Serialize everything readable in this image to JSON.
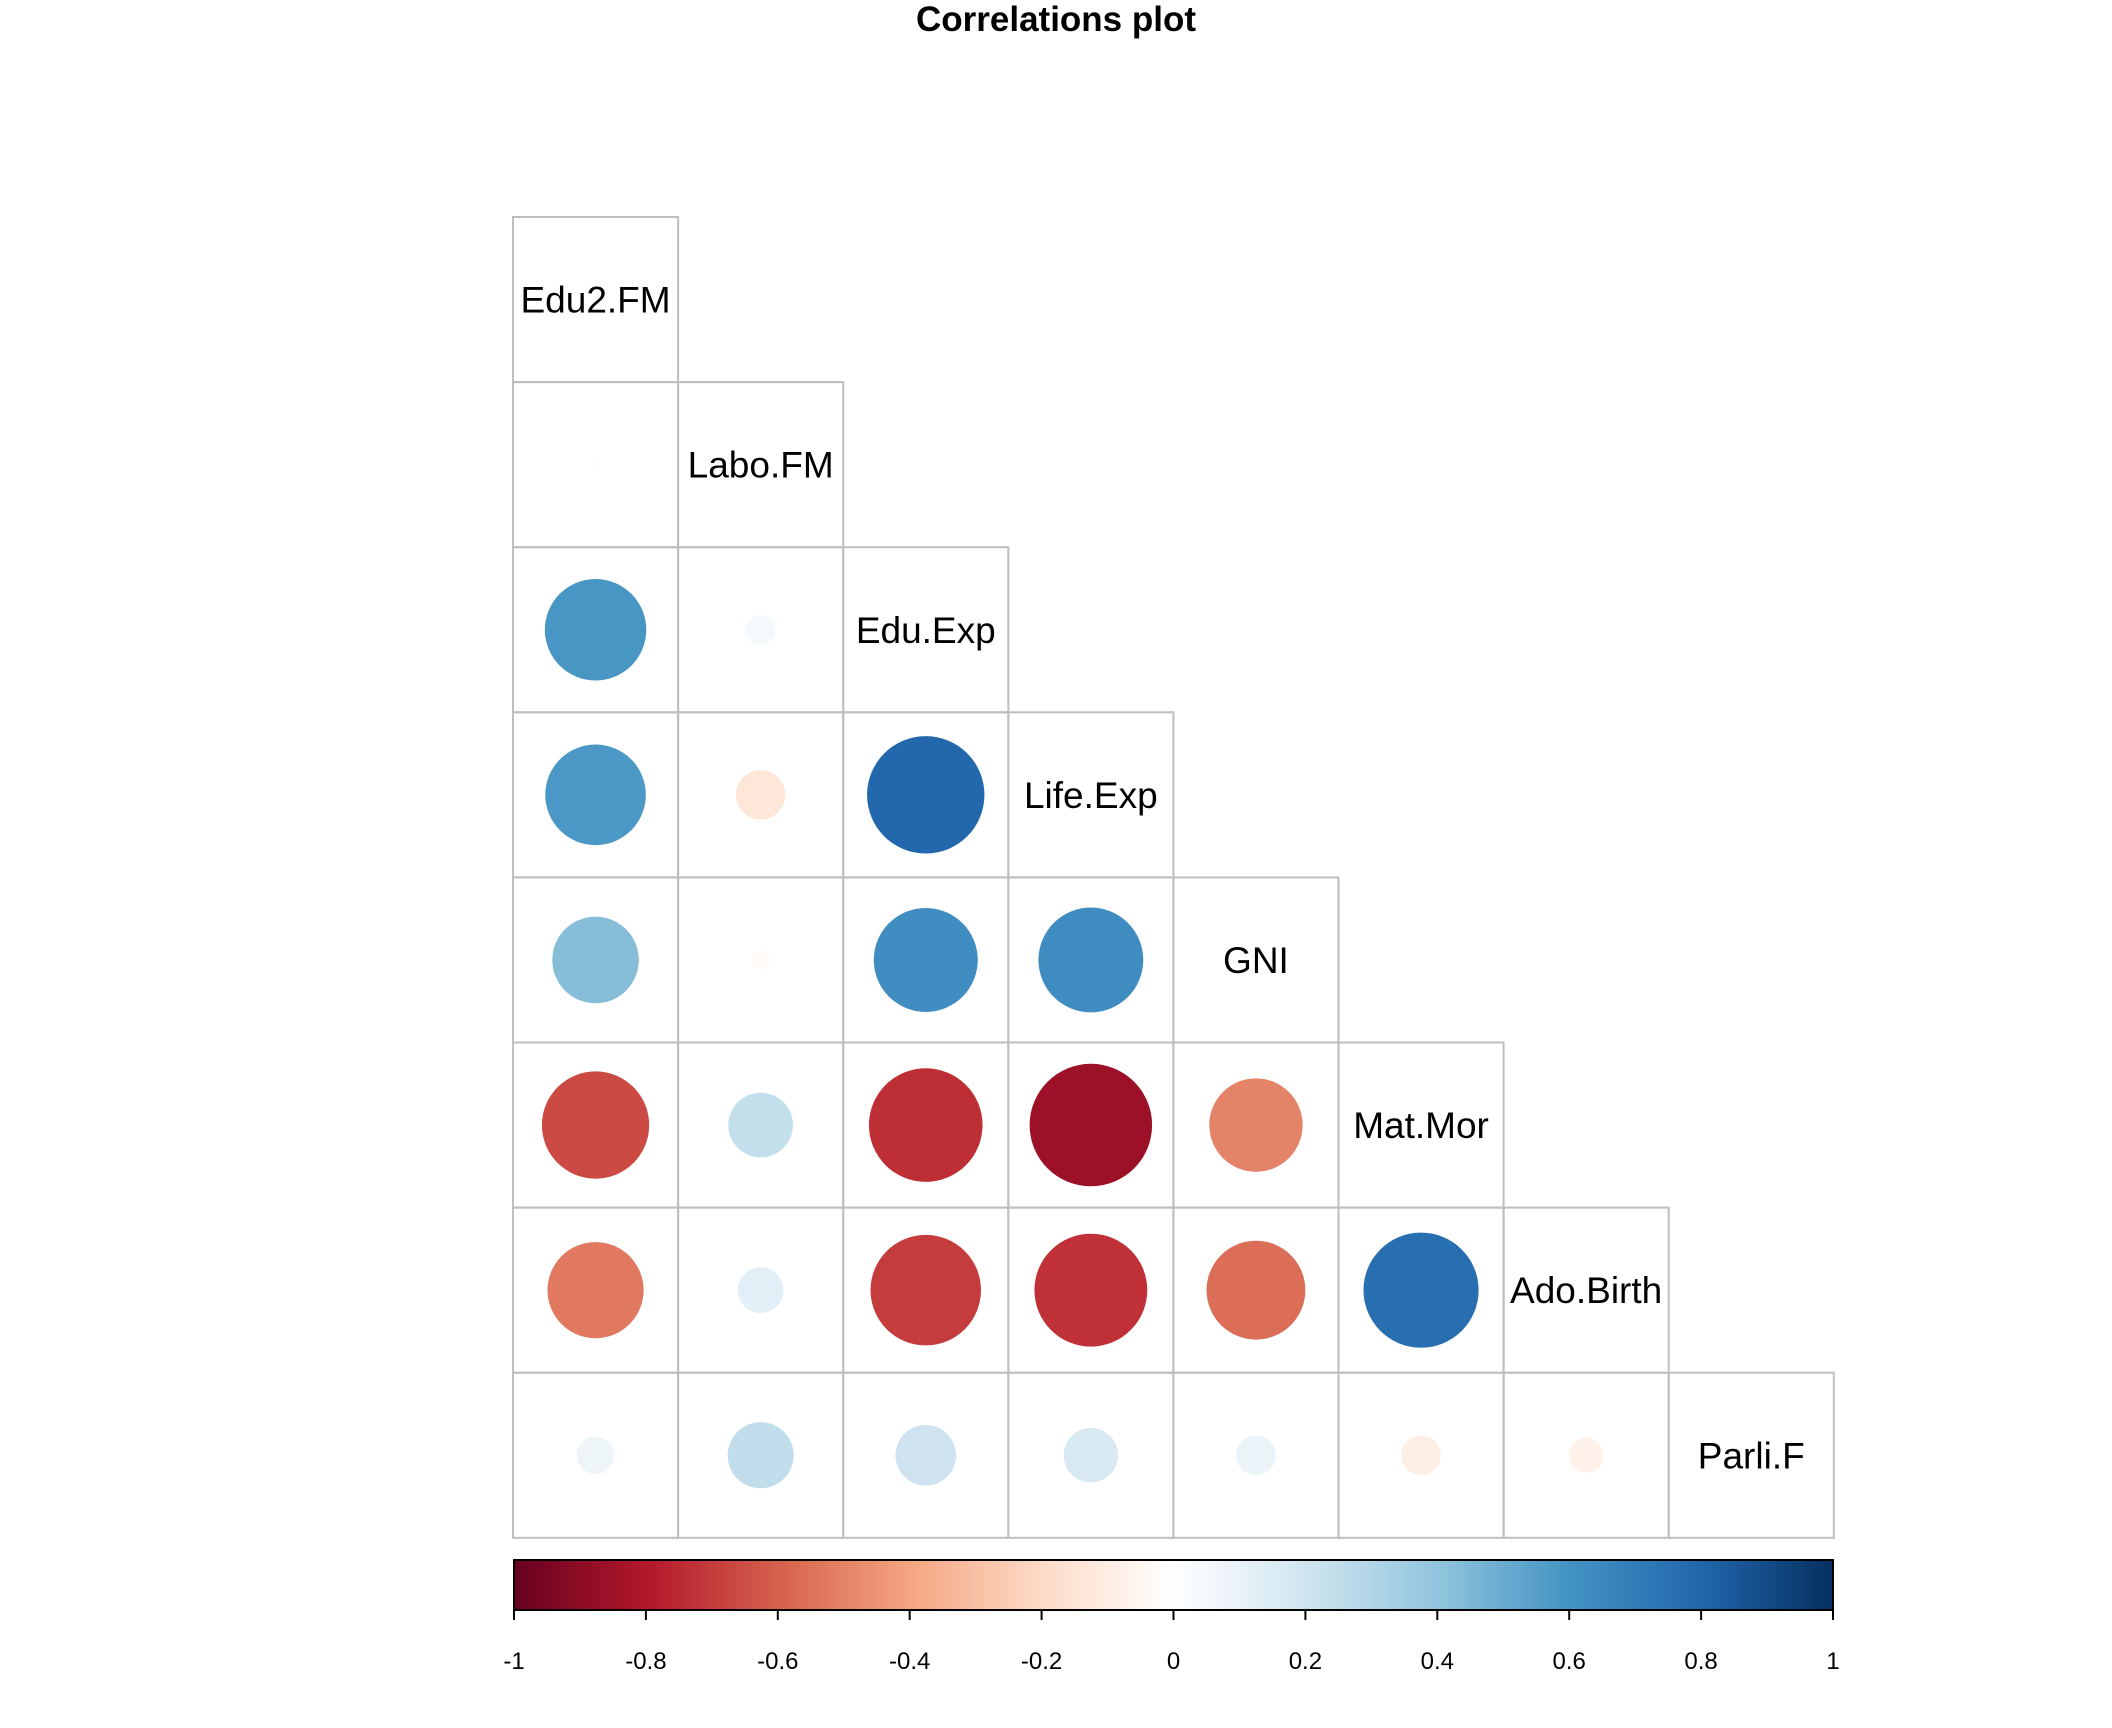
{
  "chart_data": {
    "type": "heatmap",
    "style": "correlation-circles-lower-triangle",
    "title": "Correlations plot",
    "variables": [
      "Edu2.FM",
      "Labo.FM",
      "Edu.Exp",
      "Life.Exp",
      "GNI",
      "Mat.Mor",
      "Ado.Birth",
      "Parli.F"
    ],
    "matrix": [
      [
        1.0,
        0.01,
        0.59,
        0.58,
        0.43,
        -0.66,
        -0.53,
        0.08
      ],
      [
        0.01,
        1.0,
        0.05,
        -0.14,
        -0.02,
        0.24,
        0.12,
        0.25
      ],
      [
        0.59,
        0.05,
        1.0,
        0.79,
        0.62,
        -0.74,
        -0.7,
        0.21
      ],
      [
        0.58,
        -0.14,
        0.79,
        1.0,
        0.63,
        -0.86,
        -0.73,
        0.17
      ],
      [
        0.43,
        -0.02,
        0.62,
        0.63,
        1.0,
        -0.5,
        -0.56,
        0.09
      ],
      [
        -0.66,
        0.24,
        -0.74,
        -0.86,
        -0.5,
        1.0,
        0.76,
        -0.09
      ],
      [
        -0.53,
        0.12,
        -0.7,
        -0.73,
        -0.56,
        0.76,
        1.0,
        -0.07
      ],
      [
        0.08,
        0.25,
        0.21,
        0.17,
        0.09,
        -0.09,
        -0.07,
        1.0
      ]
    ],
    "color_scale": {
      "min": -1,
      "max": 1,
      "ticks": [
        "-1",
        "-0.8",
        "-0.6",
        "-0.4",
        "-0.2",
        "0",
        "0.2",
        "0.4",
        "0.6",
        "0.8",
        "1"
      ],
      "colors": [
        "#67001F",
        "#B2182B",
        "#D6604D",
        "#F4A582",
        "#FDDBC7",
        "#FFFFFF",
        "#D1E5F0",
        "#92C5DE",
        "#4393C3",
        "#2166AC",
        "#053061"
      ],
      "position": "bottom"
    },
    "grid": true,
    "diagonal": "variable-names"
  }
}
